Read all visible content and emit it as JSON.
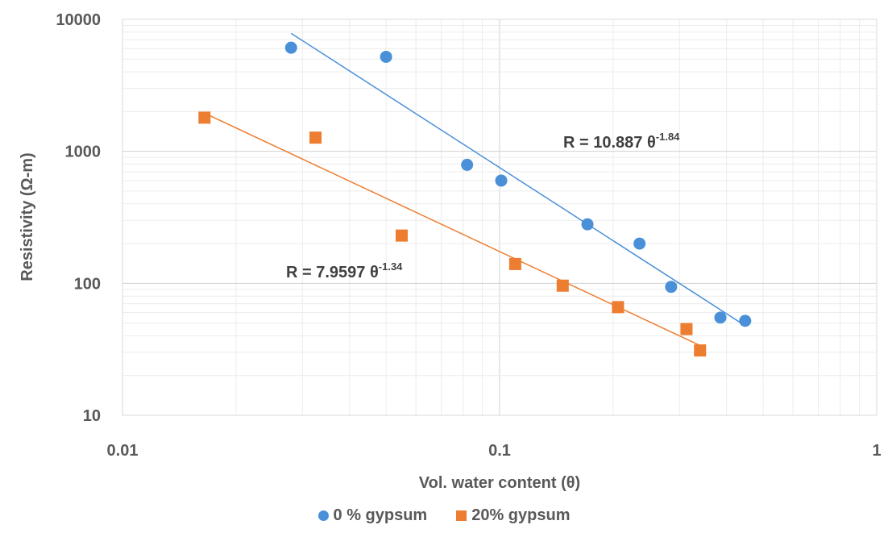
{
  "chart_data": {
    "type": "scatter",
    "xlabel": "Vol. water content (θ)",
    "ylabel": "Resistivity (Ω-m)",
    "xscale": "log",
    "yscale": "log",
    "xlim": [
      0.01,
      1
    ],
    "ylim": [
      10,
      10000
    ],
    "x_tick_labels": [
      "0.01",
      "0.1",
      "1"
    ],
    "y_tick_labels": [
      "10",
      "100",
      "1000",
      "10000"
    ],
    "grid": true,
    "legend_position": "bottom",
    "series": [
      {
        "name": "0 % gypsum",
        "marker": "circle",
        "color": "#4a90d9",
        "x": [
          0.028,
          0.05,
          0.082,
          0.101,
          0.171,
          0.235,
          0.285,
          0.385,
          0.448
        ],
        "y": [
          6100,
          5200,
          790,
          600,
          280,
          200,
          94,
          55,
          52
        ],
        "trendline": {
          "type": "power",
          "coefficient": 10.887,
          "exponent": -1.84,
          "x_range": [
            0.028,
            0.448
          ]
        }
      },
      {
        "name": "20% gypsum",
        "marker": "square",
        "color": "#ed7d31",
        "x": [
          0.0165,
          0.0325,
          0.055,
          0.11,
          0.147,
          0.206,
          0.313,
          0.34
        ],
        "y": [
          1800,
          1270,
          230,
          140,
          96,
          66,
          45,
          31
        ],
        "trendline": {
          "type": "power",
          "coefficient": 7.9597,
          "exponent": -1.34,
          "x_range": [
            0.0165,
            0.34
          ]
        }
      }
    ],
    "annotations": [
      {
        "text": "R = 10.887 θ",
        "superscript": "-1.84",
        "series": "0 % gypsum"
      },
      {
        "text": "R = 7.9597 θ",
        "superscript": "-1.34",
        "series": "20% gypsum"
      }
    ]
  }
}
